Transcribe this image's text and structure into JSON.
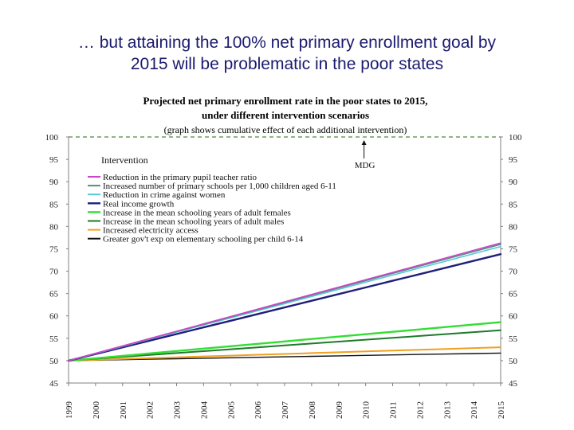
{
  "slide": {
    "title_line1": "… but attaining the 100% net primary enrollment goal by",
    "title_line2": "2015 will be problematic in the poor states"
  },
  "chart_data": {
    "type": "line",
    "title_lines": [
      "Projected net primary enrollment rate in the poor states to 2015,",
      "under different intervention scenarios"
    ],
    "subtitle": "(graph shows cumulative effect of each additional intervention)",
    "xlabel": "",
    "ylabel": "",
    "ylim": [
      45,
      100
    ],
    "yticks": [
      45,
      50,
      55,
      60,
      65,
      70,
      75,
      80,
      85,
      90,
      95,
      100
    ],
    "x": [
      "1999",
      "2000",
      "2001",
      "2002",
      "2003",
      "2004",
      "2005",
      "2006",
      "2007",
      "2008",
      "2009",
      "2010",
      "2011",
      "2012",
      "2013",
      "2014",
      "2015"
    ],
    "legend_title": "Intervention",
    "legend_position": "top-left",
    "reference_line": {
      "value": 100,
      "style": "dashed",
      "color": "#4a8a3a"
    },
    "annotation": {
      "text": "MDG",
      "x": "2010"
    },
    "series": [
      {
        "name": "Reduction in the primary pupil teacher ratio",
        "color": "#cc44cc",
        "start": 50,
        "end": 76.3,
        "width": 1.6
      },
      {
        "name": "Increased number of primary schools per 1,000 children aged 6-11",
        "color": "#5a8a80",
        "start": 50,
        "end": 76.0,
        "width": 1.6
      },
      {
        "name": "Reduction in crime against women",
        "color": "#55c8d8",
        "start": 50,
        "end": 75.5,
        "width": 1.6
      },
      {
        "name": "Real income growth",
        "color": "#1f1f7a",
        "start": 50,
        "end": 73.8,
        "width": 2.4
      },
      {
        "name": "Increase in the mean schooling years of adult females",
        "color": "#33dd33",
        "start": 50,
        "end": 58.6,
        "width": 2.4
      },
      {
        "name": "Increase in the mean schooling years of adult males",
        "color": "#1e7a2a",
        "start": 50,
        "end": 56.8,
        "width": 2.0
      },
      {
        "name": "Increased electricity access",
        "color": "#f0a020",
        "start": 50,
        "end": 53.0,
        "width": 2.0
      },
      {
        "name": "Greater gov't exp on elementary schooling per child 6-14",
        "color": "#111111",
        "start": 50,
        "end": 51.7,
        "width": 1.4
      }
    ]
  }
}
